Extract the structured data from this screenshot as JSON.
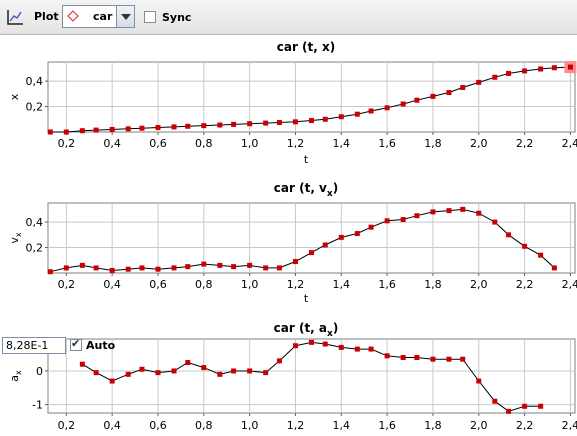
{
  "toolbar": {
    "plot_label": "Plot",
    "object_select": "car",
    "sync_label": "Sync"
  },
  "controls": {
    "value_input": "8,28E-1",
    "auto_label": "Auto"
  },
  "colors": {
    "marker": "#cc0000",
    "line": "#000000",
    "grid": "#c8c8c8",
    "highlight": "#ff8c8c"
  },
  "chart_data": [
    {
      "type": "line",
      "title": "car (t, x)",
      "xlabel": "t",
      "ylabel": "x",
      "xlim": [
        0.12,
        2.42
      ],
      "ylim": [
        0.0,
        0.55
      ],
      "x_ticks": [
        "0,2",
        "0,4",
        "0,6",
        "0,8",
        "1,0",
        "1,2",
        "1,4",
        "1,6",
        "1,8",
        "2,0",
        "2,2",
        "2,4"
      ],
      "y_ticks": [
        {
          "v": 0.2,
          "label": "0,2"
        },
        {
          "v": 0.4,
          "label": "0,4"
        }
      ],
      "grid": true,
      "x": [
        0.13,
        0.2,
        0.27,
        0.33,
        0.4,
        0.47,
        0.53,
        0.6,
        0.67,
        0.73,
        0.8,
        0.87,
        0.93,
        1.0,
        1.07,
        1.13,
        1.2,
        1.27,
        1.33,
        1.4,
        1.47,
        1.53,
        1.6,
        1.67,
        1.73,
        1.8,
        1.87,
        1.93,
        2.0,
        2.07,
        2.13,
        2.2,
        2.27,
        2.33,
        2.4
      ],
      "y": [
        0.0,
        0.0,
        0.01,
        0.015,
        0.02,
        0.025,
        0.03,
        0.035,
        0.04,
        0.045,
        0.05,
        0.055,
        0.06,
        0.065,
        0.07,
        0.075,
        0.08,
        0.09,
        0.1,
        0.12,
        0.14,
        0.165,
        0.19,
        0.22,
        0.25,
        0.28,
        0.31,
        0.35,
        0.39,
        0.43,
        0.46,
        0.48,
        0.495,
        0.505,
        0.51
      ],
      "highlight_last": true
    },
    {
      "type": "line",
      "title": "car (t, vx)",
      "title_main": "car (t, v",
      "title_sub": "x",
      "xlabel": "t",
      "ylabel": "vx",
      "xlim": [
        0.12,
        2.42
      ],
      "ylim": [
        0.0,
        0.55
      ],
      "x_ticks": [
        "0,2",
        "0,4",
        "0,6",
        "0,8",
        "1,0",
        "1,2",
        "1,4",
        "1,6",
        "1,8",
        "2,0",
        "2,2",
        "2,4"
      ],
      "y_ticks": [
        {
          "v": 0.2,
          "label": "0,2"
        },
        {
          "v": 0.4,
          "label": "0,4"
        }
      ],
      "grid": true,
      "x": [
        0.13,
        0.2,
        0.27,
        0.33,
        0.4,
        0.47,
        0.53,
        0.6,
        0.67,
        0.73,
        0.8,
        0.87,
        0.93,
        1.0,
        1.07,
        1.13,
        1.2,
        1.27,
        1.33,
        1.4,
        1.47,
        1.53,
        1.6,
        1.67,
        1.73,
        1.8,
        1.87,
        1.93,
        2.0,
        2.07,
        2.13,
        2.2,
        2.27,
        2.33
      ],
      "y": [
        0.01,
        0.04,
        0.06,
        0.04,
        0.02,
        0.03,
        0.04,
        0.03,
        0.04,
        0.05,
        0.07,
        0.06,
        0.05,
        0.06,
        0.04,
        0.04,
        0.09,
        0.16,
        0.22,
        0.28,
        0.31,
        0.36,
        0.41,
        0.42,
        0.45,
        0.48,
        0.49,
        0.5,
        0.47,
        0.4,
        0.3,
        0.21,
        0.14,
        0.04
      ]
    },
    {
      "type": "line",
      "title": "car (t, ax)",
      "title_main": "car (t, a",
      "title_sub": "x",
      "xlabel": "t",
      "ylabel": "ax",
      "xlim": [
        0.12,
        2.42
      ],
      "ylim": [
        -1.25,
        0.95
      ],
      "x_ticks": [
        "0,2",
        "0,4",
        "0,6",
        "0,8",
        "1,0",
        "1,2",
        "1,4",
        "1,6",
        "1,8",
        "2,0",
        "2,2",
        "2,4"
      ],
      "y_ticks": [
        {
          "v": 0,
          "label": "0"
        },
        {
          "v": -1,
          "label": "-1"
        }
      ],
      "grid": true,
      "x": [
        0.27,
        0.33,
        0.4,
        0.47,
        0.53,
        0.6,
        0.67,
        0.73,
        0.8,
        0.87,
        0.93,
        1.0,
        1.07,
        1.13,
        1.2,
        1.27,
        1.33,
        1.4,
        1.47,
        1.53,
        1.6,
        1.67,
        1.73,
        1.8,
        1.87,
        1.93,
        2.0,
        2.07,
        2.13,
        2.2,
        2.27
      ],
      "y": [
        0.2,
        -0.05,
        -0.3,
        -0.1,
        0.05,
        -0.05,
        0.0,
        0.25,
        0.1,
        -0.1,
        0.0,
        0.0,
        -0.05,
        0.3,
        0.75,
        0.85,
        0.8,
        0.7,
        0.65,
        0.65,
        0.45,
        0.4,
        0.4,
        0.35,
        0.35,
        0.35,
        -0.3,
        -0.9,
        -1.2,
        -1.05,
        -1.05
      ]
    }
  ]
}
